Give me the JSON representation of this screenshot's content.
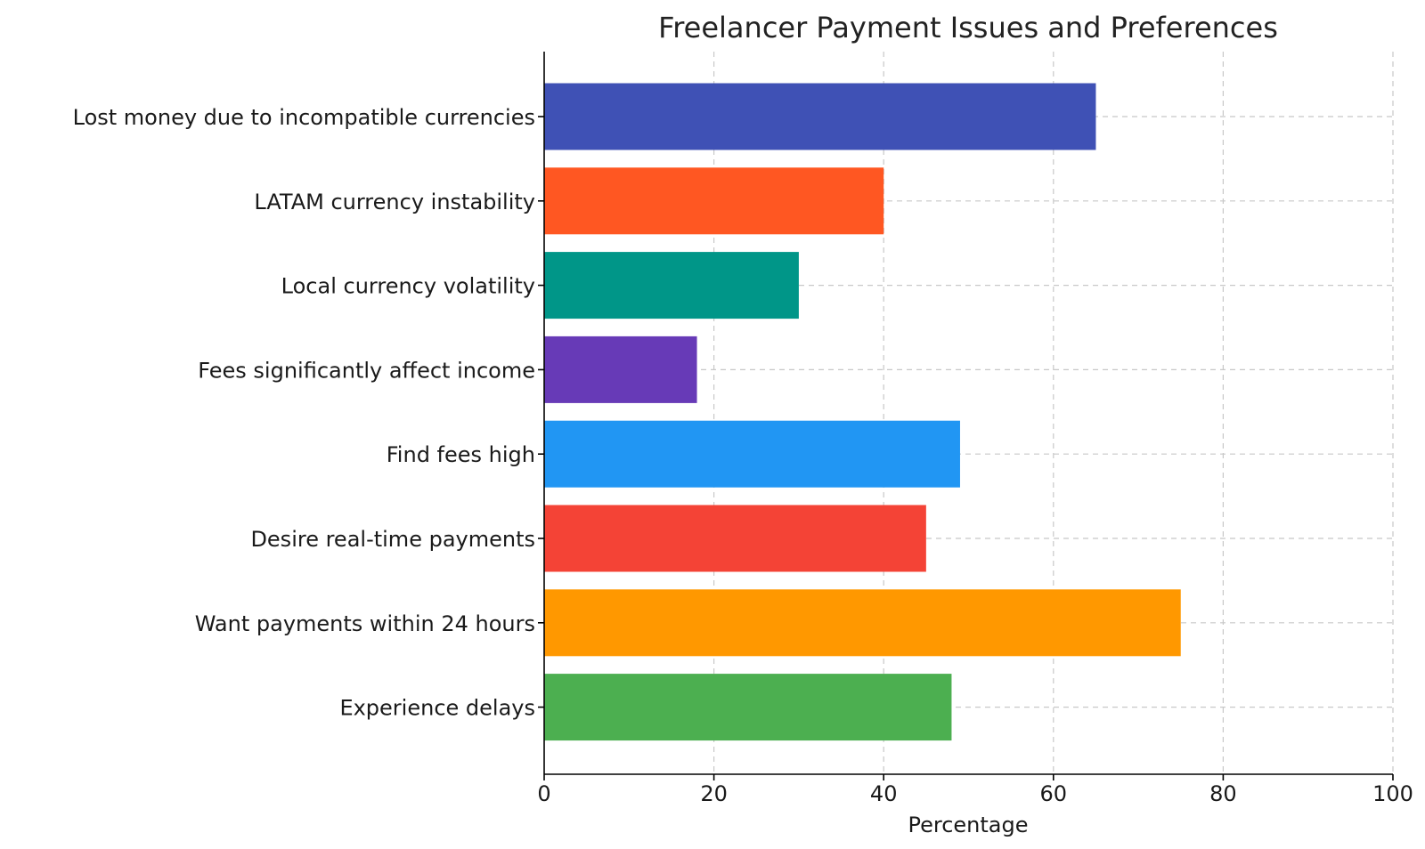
{
  "chart_data": {
    "type": "bar",
    "orientation": "horizontal",
    "title": "Freelancer Payment Issues and Preferences",
    "xlabel": "Percentage",
    "ylabel": "",
    "xlim": [
      0,
      100
    ],
    "xticks": [
      "0",
      "20",
      "40",
      "60",
      "80",
      "100"
    ],
    "grid": true,
    "categories": [
      "Lost money due to incompatible currencies",
      "LATAM currency instability",
      "Local currency volatility",
      "Fees significantly affect income",
      "Find fees high",
      "Desire real-time payments",
      "Want payments within 24 hours",
      "Experience delays"
    ],
    "values": [
      65,
      40,
      30,
      18,
      49,
      45,
      75,
      48
    ],
    "colors": [
      "#3f51b5",
      "#ff5722",
      "#009688",
      "#673ab7",
      "#2196f3",
      "#f44336",
      "#ff9800",
      "#4caf50"
    ]
  }
}
